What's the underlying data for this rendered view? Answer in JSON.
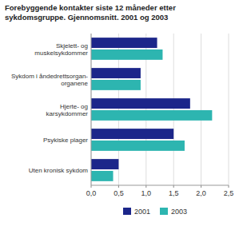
{
  "chart_data": {
    "type": "bar",
    "orientation": "horizontal",
    "title": "Forebyggende kontakter siste 12 måneder etter\nsykdomsgruppe. Gjennomsnitt. 2001 og 2003",
    "categories": [
      "Skjelett- og\nmuskelsykdommer",
      "Sykdom i åndedrettsorgan-\norganene",
      "Hjerte- og\nkarsykdommer",
      "Psykiske plager",
      "Uten kronisk sykdom"
    ],
    "series": [
      {
        "name": "2001",
        "color": "#1c268a",
        "values": [
          1.2,
          0.9,
          1.8,
          1.5,
          0.5
        ]
      },
      {
        "name": "2003",
        "color": "#2db5b0",
        "values": [
          1.3,
          0.9,
          2.2,
          1.7,
          0.4
        ]
      }
    ],
    "xlim": [
      0,
      2.5
    ],
    "xticks": [
      {
        "value": 0.0,
        "label": "0,0"
      },
      {
        "value": 0.5,
        "label": "0,5"
      },
      {
        "value": 1.0,
        "label": "1,0"
      },
      {
        "value": 1.5,
        "label": "1,5"
      },
      {
        "value": 2.0,
        "label": "2,0"
      },
      {
        "value": 2.5,
        "label": "2,5"
      }
    ],
    "grid": true,
    "legend": "bottom"
  }
}
